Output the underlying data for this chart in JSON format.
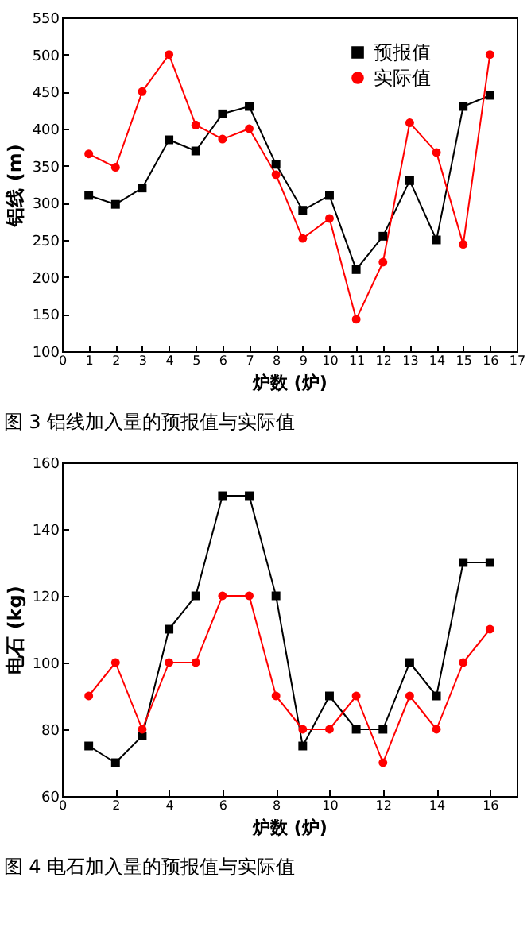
{
  "chart_data": [
    {
      "type": "line",
      "xlabel": "炉数 (炉)",
      "ylabel": "铝线 (m)",
      "annotations": [
        "图 3 铝线加入量的预报值与实际值"
      ],
      "x": [
        1,
        2,
        3,
        4,
        5,
        6,
        7,
        8,
        9,
        10,
        11,
        12,
        13,
        14,
        15,
        16
      ],
      "xlim": [
        0,
        17
      ],
      "xticks": [
        0,
        1,
        2,
        3,
        4,
        5,
        6,
        7,
        8,
        9,
        10,
        11,
        12,
        13,
        14,
        15,
        16,
        17
      ],
      "ylim": [
        100,
        550
      ],
      "yticks": [
        100,
        150,
        200,
        250,
        300,
        350,
        400,
        450,
        500,
        550
      ],
      "grid": false,
      "legend": "top right",
      "line_style": "solid",
      "series": [
        {
          "name": "预报值",
          "color": "#000000",
          "marker": "square",
          "values": [
            310,
            298,
            320,
            385,
            370,
            420,
            430,
            352,
            290,
            310,
            210,
            255,
            330,
            250,
            430,
            445
          ]
        },
        {
          "name": "实际值",
          "color": "#ff0000",
          "marker": "circle",
          "values": [
            366,
            348,
            450,
            500,
            405,
            386,
            400,
            338,
            252,
            279,
            143,
            220,
            408,
            368,
            244,
            500
          ]
        }
      ]
    },
    {
      "type": "line",
      "xlabel": "炉数 (炉)",
      "ylabel": "电石 (kg)",
      "annotations": [
        "图 4 电石加入量的预报值与实际值"
      ],
      "x": [
        1,
        2,
        3,
        4,
        5,
        6,
        7,
        8,
        9,
        10,
        11,
        12,
        13,
        14,
        15,
        16
      ],
      "xlim": [
        0,
        17
      ],
      "xticks": [
        0,
        2,
        4,
        6,
        8,
        10,
        12,
        14,
        16
      ],
      "ylim": [
        60,
        160
      ],
      "yticks": [
        60,
        80,
        100,
        120,
        140,
        160
      ],
      "grid": false,
      "legend": "top right",
      "line_style": "solid",
      "series": [
        {
          "name": "预报值",
          "color": "#000000",
          "marker": "square",
          "values": [
            75,
            70,
            78,
            110,
            120,
            150,
            150,
            120,
            75,
            90,
            80,
            80,
            100,
            90,
            130,
            130
          ]
        },
        {
          "name": "实际值",
          "color": "#ff0000",
          "marker": "circle",
          "values": [
            90,
            100,
            80,
            100,
            100,
            120,
            120,
            90,
            80,
            80,
            90,
            70,
            90,
            80,
            100,
            110
          ]
        }
      ]
    }
  ]
}
